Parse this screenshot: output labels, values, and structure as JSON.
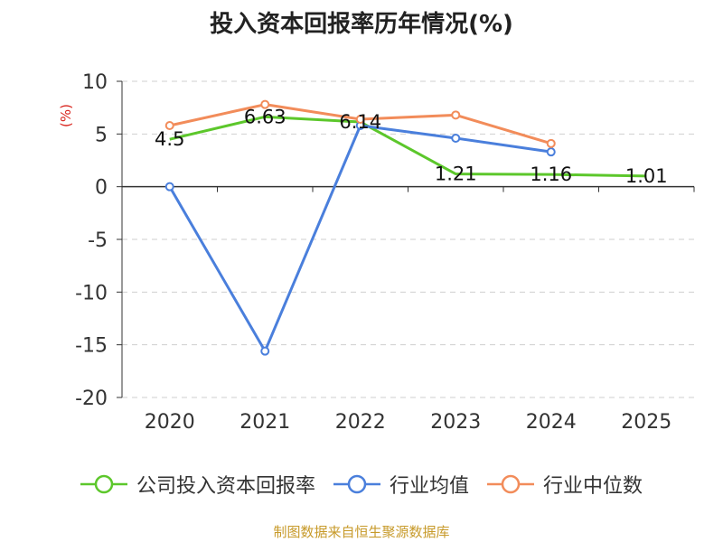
{
  "chart_data": {
    "type": "line",
    "title": "投入资本回报率历年情况(%)",
    "ylabel": "(%)",
    "xlabel": "",
    "categories": [
      "2020",
      "2021",
      "2022",
      "2023",
      "2024",
      "2025"
    ],
    "ylim": [
      -20,
      10
    ],
    "yticks": [
      10,
      5,
      0,
      -5,
      -10,
      -15,
      -20
    ],
    "grid": true,
    "legend_position": "bottom",
    "series": [
      {
        "name": "公司投入资本回报率",
        "color": "#5cc72b",
        "values": [
          4.5,
          6.63,
          6.14,
          1.21,
          1.16,
          1.01
        ],
        "labels": [
          "4.5",
          "6.63",
          "6.14",
          "1.21",
          "1.16",
          "1.01"
        ],
        "show_markers": false
      },
      {
        "name": "行业均值",
        "color": "#4a7fdc",
        "values": [
          0.0,
          -15.6,
          5.8,
          4.6,
          3.3,
          null
        ],
        "show_markers": true
      },
      {
        "name": "行业中位数",
        "color": "#f28c5a",
        "values": [
          5.8,
          7.8,
          6.4,
          6.8,
          4.1,
          null
        ],
        "show_markers": true
      }
    ]
  },
  "ylabel_color": "#d9241d",
  "source": {
    "text": "制图数据来自恒生聚源数据库",
    "color": "#c79a2a"
  }
}
